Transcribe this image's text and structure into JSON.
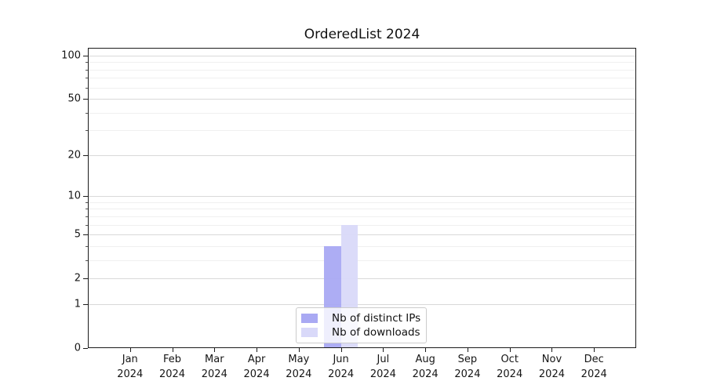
{
  "chart_data": {
    "type": "bar",
    "title": "OrderedList 2024",
    "months": [
      "Jan",
      "Feb",
      "Mar",
      "Apr",
      "May",
      "Jun",
      "Jul",
      "Aug",
      "Sep",
      "Oct",
      "Nov",
      "Dec"
    ],
    "year": "2024",
    "series": [
      {
        "name": "Nb of distinct IPs",
        "color": "#a9a9f3",
        "values": [
          0,
          0,
          0,
          0,
          0,
          4,
          0,
          0,
          0,
          0,
          0,
          0
        ]
      },
      {
        "name": "Nb of downloads",
        "color": "#d9d9f9",
        "values": [
          0,
          0,
          0,
          0,
          0,
          6,
          0,
          0,
          0,
          0,
          0,
          0
        ]
      }
    ],
    "yscale": "log1p",
    "ylim": [
      0,
      113
    ],
    "y_major_ticks": [
      0,
      1,
      2,
      5,
      10,
      20,
      50,
      100
    ],
    "y_minor_ticks": [
      3,
      4,
      6,
      7,
      8,
      9,
      30,
      40,
      60,
      70,
      80,
      90
    ],
    "grid": true,
    "legend_position": "lower center",
    "xlabel": "",
    "ylabel": ""
  },
  "colors": {
    "grid_major": "#d9d9d9",
    "grid_minor": "#f0f0f0",
    "axis": "#1c1c1c",
    "legend_border": "#cccccc"
  }
}
